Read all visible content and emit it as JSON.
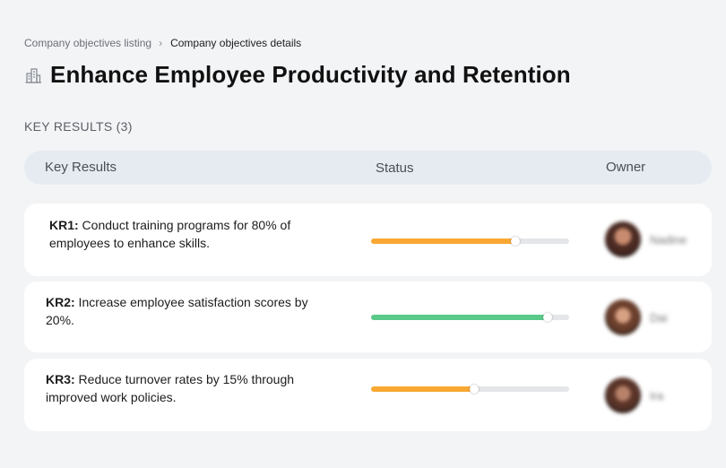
{
  "breadcrumb": {
    "parent": "Company objectives listing",
    "separator": "›",
    "current": "Company objectives details"
  },
  "objective": {
    "icon": "buildings-icon",
    "title": "Enhance Employee Productivity and Retention"
  },
  "key_results_section": {
    "label": "KEY RESULTS (3)"
  },
  "table": {
    "columns": [
      "Key Results",
      "Status",
      "Owner"
    ]
  },
  "key_results": [
    {
      "code": "KR1:",
      "text": " Conduct training programs for 80% of employees to enhance skills.",
      "progress": 0.73,
      "color": "#f9a834",
      "owner": "Nadine"
    },
    {
      "code": "KR2:",
      "text": " Increase employee satisfaction scores by 20%.",
      "progress": 0.89,
      "color": "#5ac98a",
      "owner": "Dai"
    },
    {
      "code": "KR3:",
      "text": " Reduce turnover rates by 15% through improved work policies.",
      "progress": 0.52,
      "color": "#f9a834",
      "owner": "Ira"
    }
  ]
}
